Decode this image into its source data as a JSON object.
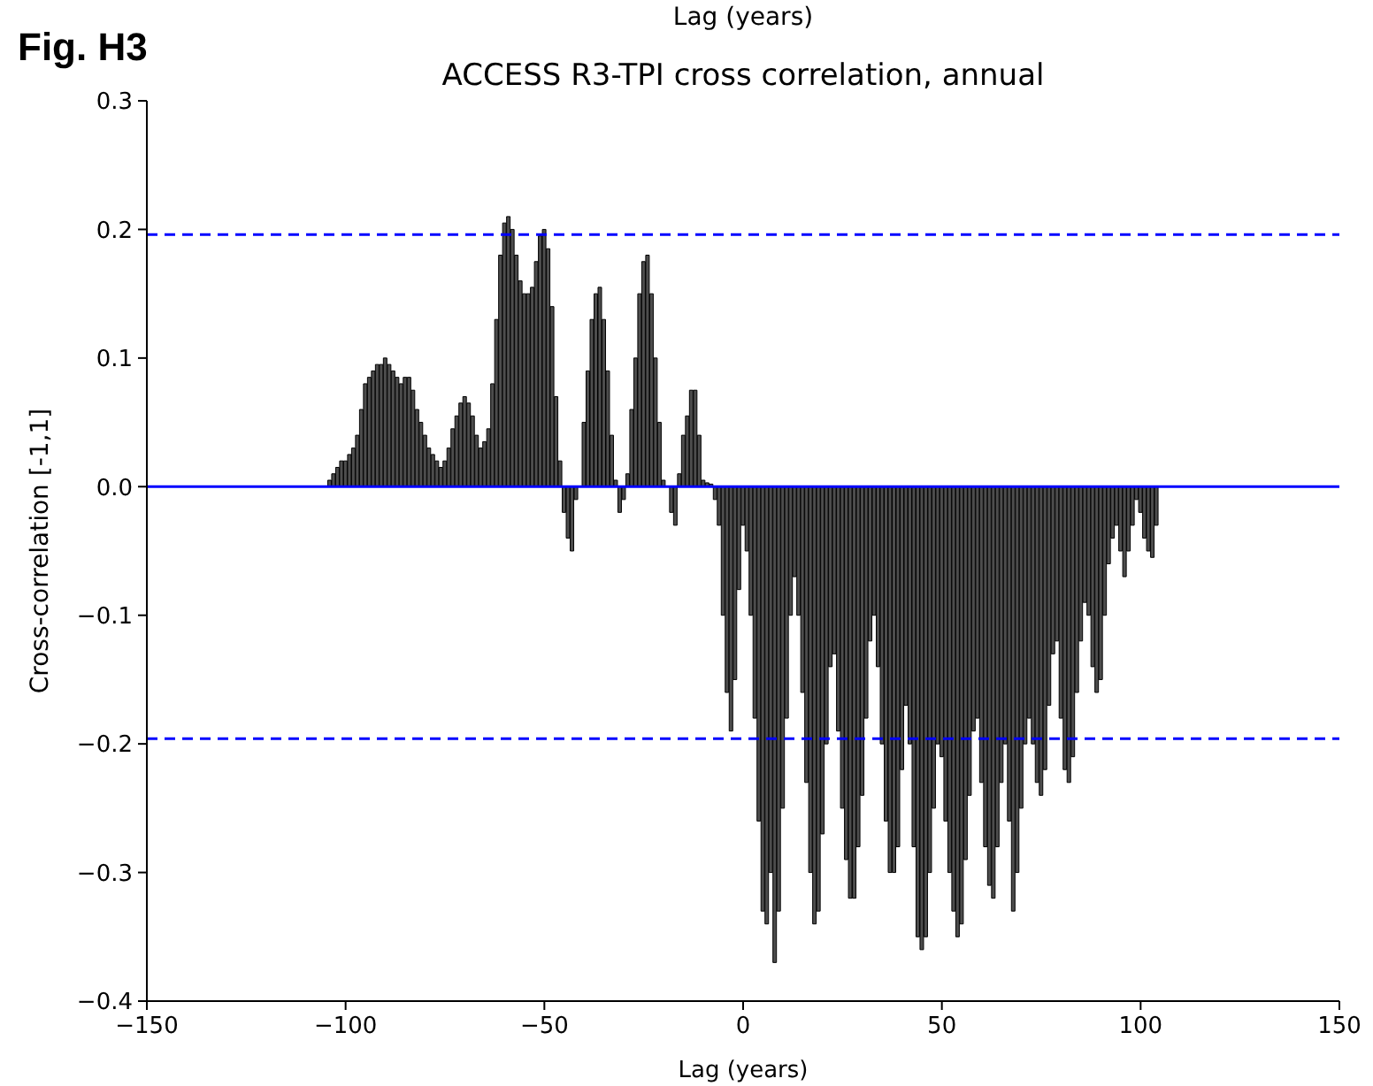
{
  "chart_data": {
    "type": "bar",
    "title": "ACCESS R3-TPI cross correlation, annual",
    "xlabel": "Lag (years)",
    "ylabel": "Cross-correlation [-1,1]",
    "annotations": [
      "Fig. H3",
      "Lag (years)"
    ],
    "x": [
      -104,
      -103,
      -102,
      -101,
      -100,
      -99,
      -98,
      -97,
      -96,
      -95,
      -94,
      -93,
      -92,
      -91,
      -90,
      -89,
      -88,
      -87,
      -86,
      -85,
      -84,
      -83,
      -82,
      -81,
      -80,
      -79,
      -78,
      -77,
      -76,
      -75,
      -74,
      -73,
      -72,
      -71,
      -70,
      -69,
      -68,
      -67,
      -66,
      -65,
      -64,
      -63,
      -62,
      -61,
      -60,
      -59,
      -58,
      -57,
      -56,
      -55,
      -54,
      -53,
      -52,
      -51,
      -50,
      -49,
      -48,
      -47,
      -46,
      -45,
      -44,
      -43,
      -42,
      -41,
      -40,
      -39,
      -38,
      -37,
      -36,
      -35,
      -34,
      -33,
      -32,
      -31,
      -30,
      -29,
      -28,
      -27,
      -26,
      -25,
      -24,
      -23,
      -22,
      -21,
      -20,
      -19,
      -18,
      -17,
      -16,
      -15,
      -14,
      -13,
      -12,
      -11,
      -10,
      -9,
      -8,
      -7,
      -6,
      -5,
      -4,
      -3,
      -2,
      -1,
      0,
      1,
      2,
      3,
      4,
      5,
      6,
      7,
      8,
      9,
      10,
      11,
      12,
      13,
      14,
      15,
      16,
      17,
      18,
      19,
      20,
      21,
      22,
      23,
      24,
      25,
      26,
      27,
      28,
      29,
      30,
      31,
      32,
      33,
      34,
      35,
      36,
      37,
      38,
      39,
      40,
      41,
      42,
      43,
      44,
      45,
      46,
      47,
      48,
      49,
      50,
      51,
      52,
      53,
      54,
      55,
      56,
      57,
      58,
      59,
      60,
      61,
      62,
      63,
      64,
      65,
      66,
      67,
      68,
      69,
      70,
      71,
      72,
      73,
      74,
      75,
      76,
      77,
      78,
      79,
      80,
      81,
      82,
      83,
      84,
      85,
      86,
      87,
      88,
      89,
      90,
      91,
      92,
      93,
      94,
      95,
      96,
      97,
      98,
      99,
      100,
      101,
      102,
      103,
      104
    ],
    "values": [
      0.005,
      0.01,
      0.015,
      0.02,
      0.02,
      0.025,
      0.03,
      0.04,
      0.06,
      0.08,
      0.085,
      0.09,
      0.095,
      0.095,
      0.1,
      0.095,
      0.09,
      0.085,
      0.08,
      0.085,
      0.085,
      0.075,
      0.06,
      0.05,
      0.04,
      0.03,
      0.025,
      0.02,
      0.015,
      0.02,
      0.03,
      0.045,
      0.055,
      0.065,
      0.07,
      0.065,
      0.055,
      0.04,
      0.03,
      0.035,
      0.045,
      0.08,
      0.13,
      0.18,
      0.205,
      0.21,
      0.2,
      0.18,
      0.16,
      0.15,
      0.15,
      0.155,
      0.175,
      0.195,
      0.2,
      0.185,
      0.14,
      0.07,
      0.02,
      -0.02,
      -0.04,
      -0.05,
      -0.01,
      0,
      0.05,
      0.09,
      0.13,
      0.15,
      0.155,
      0.13,
      0.09,
      0.04,
      0.005,
      -0.02,
      -0.01,
      0.01,
      0.06,
      0.1,
      0.15,
      0.175,
      0.18,
      0.15,
      0.1,
      0.05,
      0.005,
      0,
      -0.02,
      -0.03,
      0.01,
      0.04,
      0.055,
      0.075,
      0.075,
      0.04,
      0.005,
      0.003,
      0.002,
      -0.01,
      -0.03,
      -0.1,
      -0.16,
      -0.19,
      -0.15,
      -0.08,
      -0.03,
      -0.05,
      -0.1,
      -0.18,
      -0.26,
      -0.33,
      -0.34,
      -0.3,
      -0.37,
      -0.33,
      -0.25,
      -0.18,
      -0.1,
      -0.07,
      -0.1,
      -0.16,
      -0.23,
      -0.3,
      -0.34,
      -0.33,
      -0.27,
      -0.2,
      -0.14,
      -0.13,
      -0.19,
      -0.25,
      -0.29,
      -0.32,
      -0.32,
      -0.28,
      -0.24,
      -0.18,
      -0.12,
      -0.1,
      -0.14,
      -0.2,
      -0.26,
      -0.3,
      -0.3,
      -0.28,
      -0.22,
      -0.17,
      -0.2,
      -0.28,
      -0.35,
      -0.36,
      -0.35,
      -0.3,
      -0.25,
      -0.2,
      -0.21,
      -0.26,
      -0.3,
      -0.33,
      -0.35,
      -0.34,
      -0.29,
      -0.24,
      -0.19,
      -0.18,
      -0.23,
      -0.28,
      -0.31,
      -0.32,
      -0.28,
      -0.23,
      -0.2,
      -0.26,
      -0.33,
      -0.3,
      -0.25,
      -0.2,
      -0.18,
      -0.2,
      -0.23,
      -0.24,
      -0.22,
      -0.17,
      -0.13,
      -0.12,
      -0.18,
      -0.22,
      -0.23,
      -0.21,
      -0.16,
      -0.12,
      -0.09,
      -0.1,
      -0.14,
      -0.16,
      -0.15,
      -0.1,
      -0.06,
      -0.04,
      -0.03,
      -0.05,
      -0.07,
      -0.05,
      -0.03,
      -0.01,
      -0.02,
      -0.04,
      -0.05,
      -0.055,
      -0.03
    ],
    "color": "#4d4d4d",
    "xlim": [
      -150,
      150
    ],
    "xticks": [
      {
        "value": -150,
        "label": "−150"
      },
      {
        "value": -100,
        "label": "−100"
      },
      {
        "value": -50,
        "label": "−50"
      },
      0,
      50,
      100,
      150
    ],
    "ylim": [
      -0.4,
      0.3
    ],
    "yticks": [
      {
        "value": -0.4,
        "label": "−0.4"
      },
      {
        "value": -0.3,
        "label": "−0.3"
      },
      {
        "value": -0.2,
        "label": "−0.2"
      },
      {
        "value": -0.1,
        "label": "−0.1"
      },
      {
        "value": 0,
        "label": "0.0"
      },
      {
        "value": 0.1,
        "label": "0.1"
      },
      {
        "value": 0.2,
        "label": "0.2"
      },
      {
        "value": 0.3,
        "label": "0.3"
      }
    ],
    "ref_lines": [
      {
        "axis": "y",
        "value": 0,
        "color": "#0000ff",
        "line_style": "solid"
      },
      {
        "axis": "y",
        "value": 0.196,
        "color": "#0000ff",
        "line_style": "dashed"
      },
      {
        "axis": "y",
        "value": -0.196,
        "color": "#0000ff",
        "line_style": "dashed"
      }
    ]
  }
}
